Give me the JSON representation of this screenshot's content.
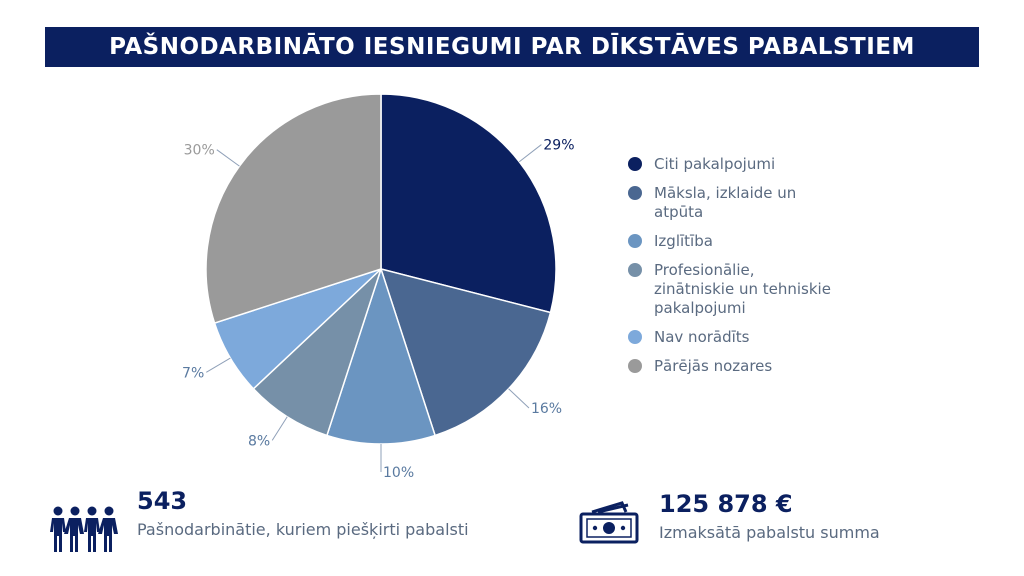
{
  "title": "PAŠNODARBINĀTO IESNIEGUMI PAR DĪKSTĀVES PABALSTIEM",
  "chart_data": {
    "type": "pie",
    "slices": [
      {
        "label": "Citi pakalpojumi",
        "value": 29,
        "value_label": "29%",
        "color": "#0b2060"
      },
      {
        "label": "Māksla, izklaide un atpūta",
        "value": 16,
        "value_label": "16%",
        "color": "#4a6791"
      },
      {
        "label": "Izglītība",
        "value": 10,
        "value_label": "10%",
        "color": "#6b95c1"
      },
      {
        "label": "Profesionālie, zinātniskie un tehniskie pakalpojumi",
        "value": 8,
        "value_label": "8%",
        "color": "#7690a8"
      },
      {
        "label": "Nav norādīts",
        "value": 7,
        "value_label": "7%",
        "color": "#7da9db"
      },
      {
        "label": "Pārējās nozares",
        "value": 30,
        "value_label": "30%",
        "color": "#9a9a9a"
      }
    ],
    "legend_position": "right"
  },
  "legend": {
    "items": [
      {
        "label": "Citi pakalpojumi",
        "color": "#0b2060"
      },
      {
        "label": "Māksla, izklaide un atpūta",
        "color": "#4a6791"
      },
      {
        "label": "Izglītība",
        "color": "#6b95c1"
      },
      {
        "label": "Profesionālie, zinātniskie un tehniskie pakalpojumi",
        "color": "#7690a8"
      },
      {
        "label": "Nav norādīts",
        "color": "#7da9db"
      },
      {
        "label": "Pārējās nozares",
        "color": "#9a9a9a"
      }
    ]
  },
  "stats": {
    "people": {
      "number": "543",
      "description": "Pašnodarbinātie, kuriem piešķirti pabalsti",
      "icon": "people-icon"
    },
    "money": {
      "number": "125 878 €",
      "description": "Izmaksātā pabalstu summa",
      "icon": "money-icon"
    }
  }
}
